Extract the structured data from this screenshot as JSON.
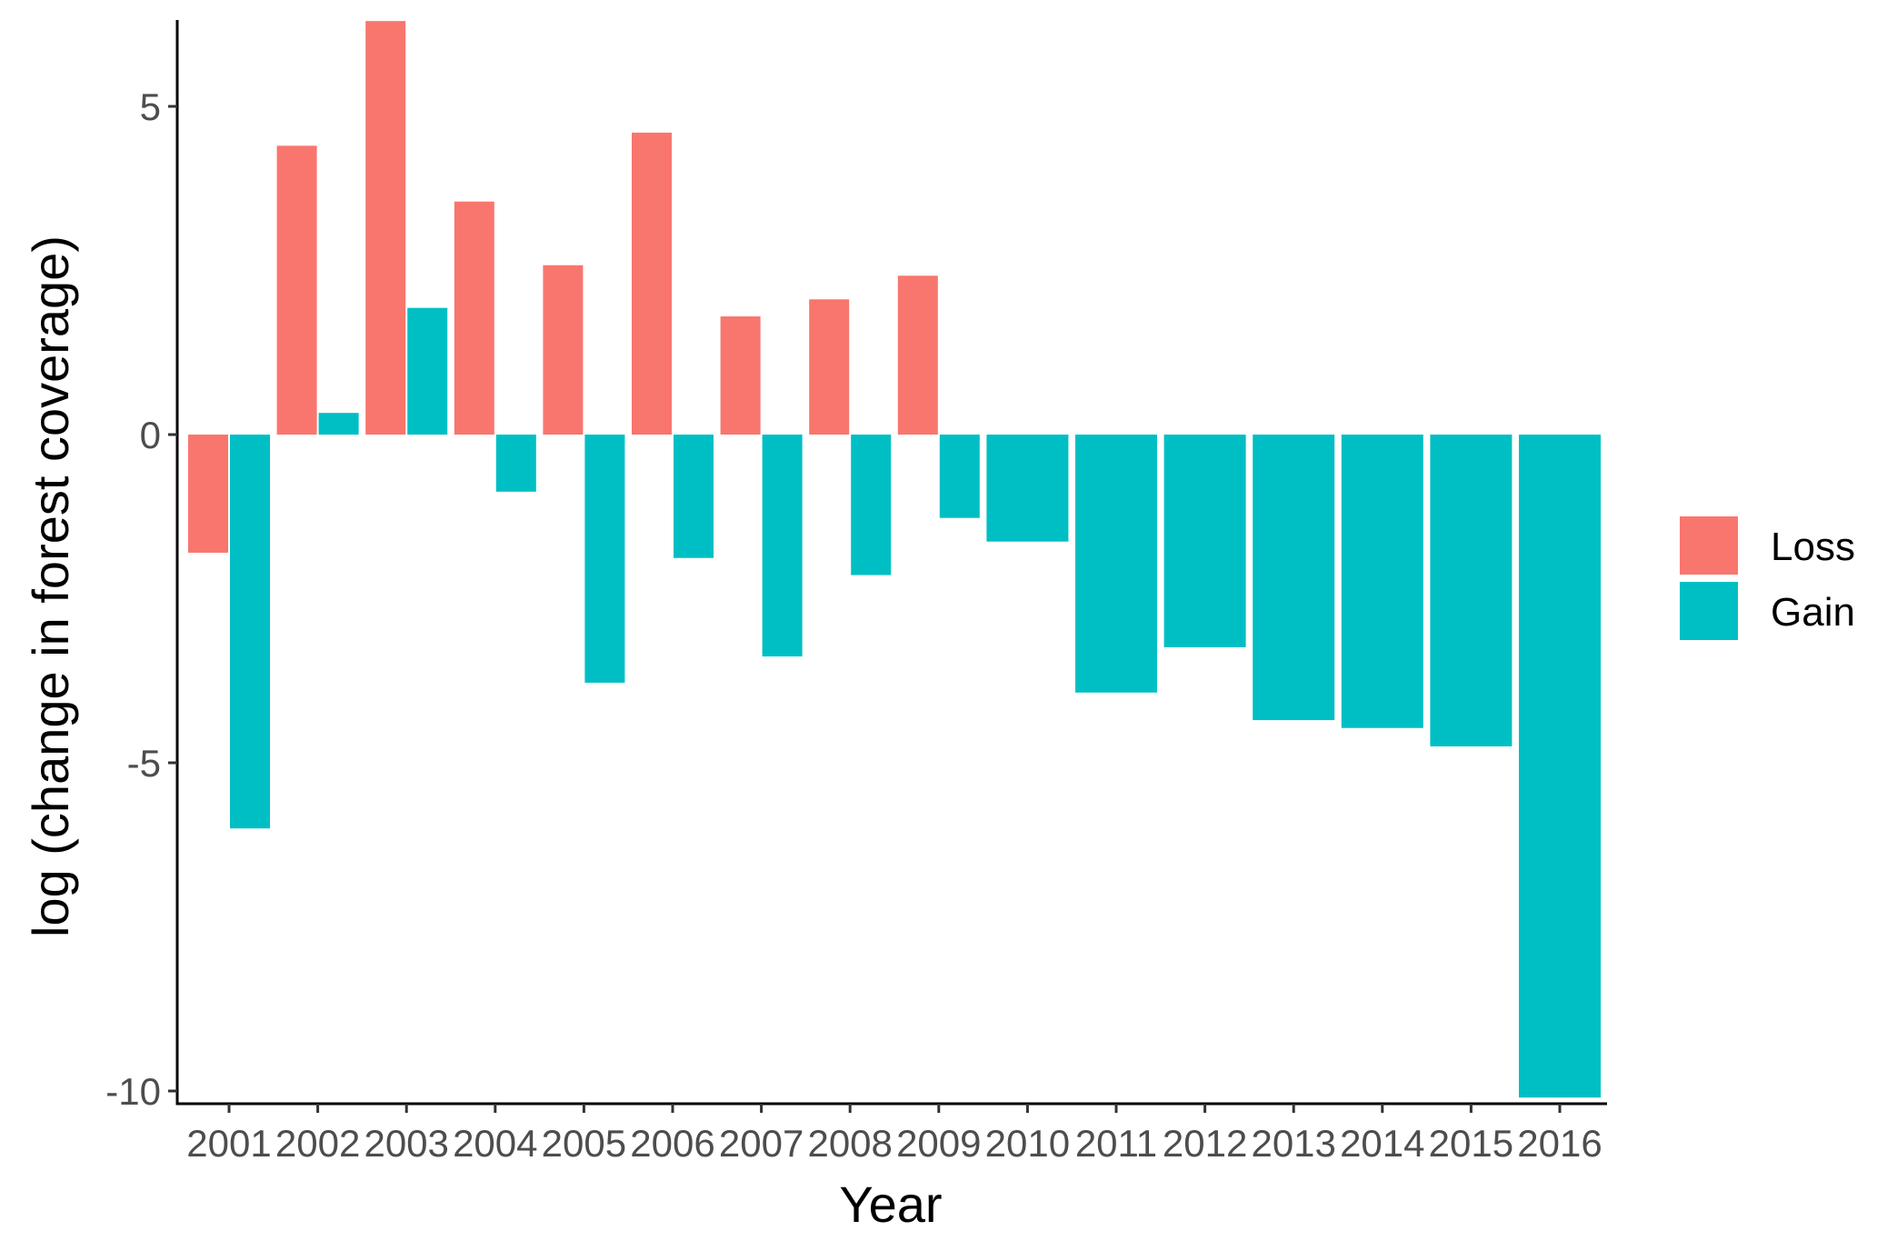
{
  "chart_data": {
    "type": "bar",
    "xlabel": "Year",
    "ylabel": "log (change in forest coverage)",
    "categories": [
      "2001",
      "2002",
      "2003",
      "2004",
      "2005",
      "2006",
      "2007",
      "2008",
      "2009",
      "2010",
      "2011",
      "2012",
      "2013",
      "2014",
      "2015",
      "2016"
    ],
    "yticks": [
      -10,
      -5,
      0,
      5
    ],
    "ytick_labels": [
      "-10",
      "-5",
      "0",
      "5"
    ],
    "ylim": [
      -10.1,
      6.3
    ],
    "grid": false,
    "legend_position": "right",
    "series": [
      {
        "name": "Loss",
        "color": "#F8766D",
        "values": [
          -1.8,
          4.4,
          6.3,
          3.55,
          2.58,
          4.6,
          1.8,
          2.06,
          2.42,
          null,
          null,
          null,
          null,
          null,
          null,
          null
        ]
      },
      {
        "name": "Gain",
        "color": "#00BFC4",
        "values": [
          -6.0,
          0.33,
          1.93,
          -0.87,
          -3.78,
          -1.88,
          -3.38,
          -2.14,
          -1.27,
          -1.63,
          -3.93,
          -3.24,
          -4.35,
          -4.47,
          -4.75,
          -10.1
        ]
      }
    ]
  }
}
